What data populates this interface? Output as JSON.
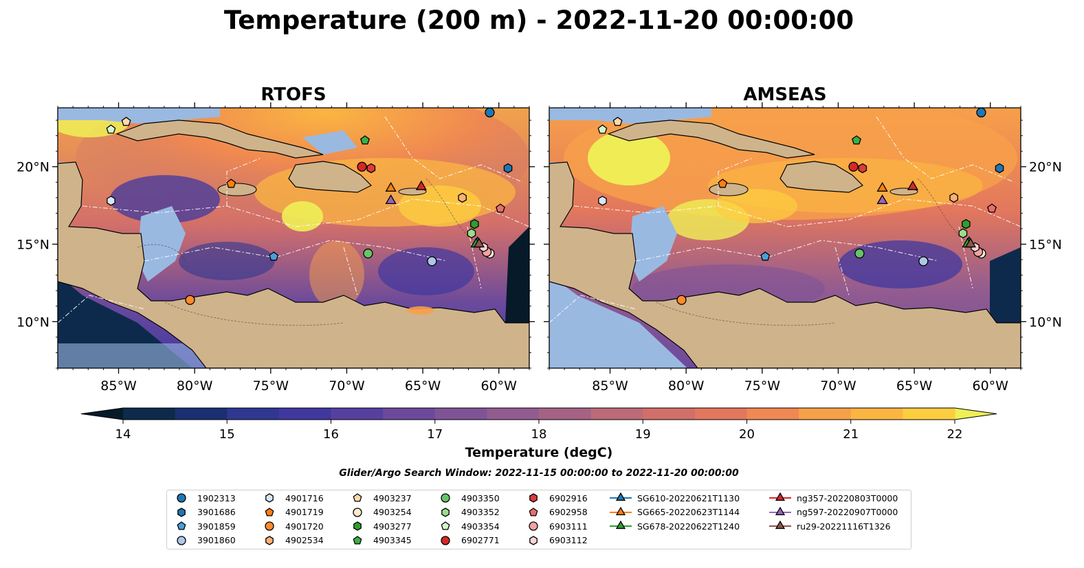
{
  "title": "Temperature (200 m) - 2022-11-20 00:00:00",
  "search_window": "Glider/Argo Search Window: 2022-11-15 00:00:00 to 2022-11-20 00:00:00",
  "colors": {
    "land": "#cfb38b",
    "water": "#9ab9e1",
    "frame": "#000000",
    "colormap": [
      "#061a2a",
      "#0d2a4c",
      "#1b2f73",
      "#2f3791",
      "#40389f",
      "#56409f",
      "#6b4a9c",
      "#7f5497",
      "#935c90",
      "#a66285",
      "#bd6b78",
      "#d26f6a",
      "#e2775d",
      "#ef8852",
      "#f7a04a",
      "#fbb541",
      "#fdcd40",
      "#eef056"
    ]
  },
  "chart_data": [
    {
      "type": "heatmap",
      "title": "RTOFS",
      "x_ticks": [
        "85°W",
        "80°W",
        "75°W",
        "70°W",
        "65°W",
        "60°W"
      ],
      "x_tick_values": [
        -85,
        -80,
        -75,
        -70,
        -65,
        -60
      ],
      "y_ticks": [
        "10°N",
        "15°N",
        "20°N"
      ],
      "y_tick_values": [
        10,
        15,
        20
      ],
      "xlim": [
        -89,
        -58
      ],
      "ylim": [
        7,
        23.8
      ]
    },
    {
      "type": "heatmap",
      "title": "AMSEAS",
      "x_ticks": [
        "85°W",
        "80°W",
        "75°W",
        "70°W",
        "65°W",
        "60°W"
      ],
      "x_tick_values": [
        -85,
        -80,
        -75,
        -70,
        -65,
        -60
      ],
      "y_ticks": [
        "10°N",
        "15°N",
        "20°N"
      ],
      "y_tick_values": [
        10,
        15,
        20
      ],
      "xlim": [
        -89,
        -58
      ],
      "ylim": [
        7,
        23.8
      ]
    }
  ],
  "colorbar": {
    "label": "Temperature (degC)",
    "min": 14,
    "max": 22,
    "step": 0.5,
    "tick_values": [
      14,
      15,
      16,
      17,
      18,
      19,
      20,
      21,
      22
    ],
    "tick_labels": [
      "14",
      "15",
      "16",
      "17",
      "18",
      "19",
      "20",
      "21",
      "22"
    ],
    "extend": "both"
  },
  "legend": [
    {
      "label": "1902313",
      "marker": "circle",
      "color": "#1f77b4",
      "lon": -60.6,
      "lat": 23.5
    },
    {
      "label": "3901686",
      "marker": "hexagon",
      "color": "#1f77b4",
      "lon": -59.4,
      "lat": 19.9
    },
    {
      "label": "3901859",
      "marker": "pentagon",
      "color": "#4a9fd8",
      "lon": -74.8,
      "lat": 14.2
    },
    {
      "label": "3901860",
      "marker": "circle",
      "color": "#aec7e8",
      "lon": -64.4,
      "lat": 13.9
    },
    {
      "label": "4901716",
      "marker": "hexagon",
      "color": "#d6e7f6",
      "lon": -85.5,
      "lat": 17.8
    },
    {
      "label": "4901719",
      "marker": "pentagon",
      "color": "#ff7f0e",
      "lon": -77.6,
      "lat": 18.9
    },
    {
      "label": "4901720",
      "marker": "circle",
      "color": "#ff8c2a",
      "lon": -80.3,
      "lat": 11.4
    },
    {
      "label": "4902534",
      "marker": "hexagon",
      "color": "#ffb074",
      "lon": -62.4,
      "lat": 18.0
    },
    {
      "label": "4903237",
      "marker": "pentagon",
      "color": "#ffd9ad",
      "lon": -84.5,
      "lat": 22.9
    },
    {
      "label": "4903254",
      "marker": "circle",
      "color": "#ffe9d1",
      "lon": -60.6,
      "lat": 14.4
    },
    {
      "label": "4903277",
      "marker": "hexagon",
      "color": "#2ca02c",
      "lon": -61.6,
      "lat": 16.3
    },
    {
      "label": "4903345",
      "marker": "pentagon",
      "color": "#3cb043",
      "lon": -68.8,
      "lat": 21.7
    },
    {
      "label": "4903350",
      "marker": "circle",
      "color": "#66c466",
      "lon": -68.6,
      "lat": 14.4
    },
    {
      "label": "4903352",
      "marker": "hexagon",
      "color": "#98df8a",
      "lon": -61.8,
      "lat": 15.7
    },
    {
      "label": "4903354",
      "marker": "pentagon",
      "color": "#d6f5cf",
      "lon": -85.5,
      "lat": 22.4
    },
    {
      "label": "6902771",
      "marker": "circle",
      "color": "#d62728",
      "lon": -69.0,
      "lat": 20.0
    },
    {
      "label": "6902916",
      "marker": "hexagon",
      "color": "#dc3b3b",
      "lon": -68.4,
      "lat": 19.9
    },
    {
      "label": "6902958",
      "marker": "pentagon",
      "color": "#ea6d6d",
      "lon": -59.9,
      "lat": 17.3
    },
    {
      "label": "6903111",
      "marker": "circle",
      "color": "#f4a2a2",
      "lon": -60.8,
      "lat": 14.5
    },
    {
      "label": "6903112",
      "marker": "hexagon",
      "color": "#fcd4d4",
      "lon": -61.0,
      "lat": 14.8
    },
    {
      "label": "SG610-20220621T1130",
      "marker": "triangle",
      "color": "#1f77b4",
      "lon": -61.4,
      "lat": 15.1
    },
    {
      "label": "SG665-20220623T1144",
      "marker": "triangle",
      "color": "#ff7f0e",
      "lon": -67.1,
      "lat": 18.6
    },
    {
      "label": "SG678-20220622T1240",
      "marker": "triangle",
      "color": "#2ca02c",
      "lon": -61.5,
      "lat": 15.0
    },
    {
      "label": "ng357-20220803T0000",
      "marker": "triangle",
      "color": "#d62728",
      "lon": -65.1,
      "lat": 18.7
    },
    {
      "label": "ng597-20220907T0000",
      "marker": "triangle",
      "color": "#9467bd",
      "lon": -67.1,
      "lat": 17.8
    },
    {
      "label": "ru29-20221116T1326",
      "marker": "triangle",
      "color": "#8c564b",
      "lon": -61.3,
      "lat": 15.0
    }
  ]
}
